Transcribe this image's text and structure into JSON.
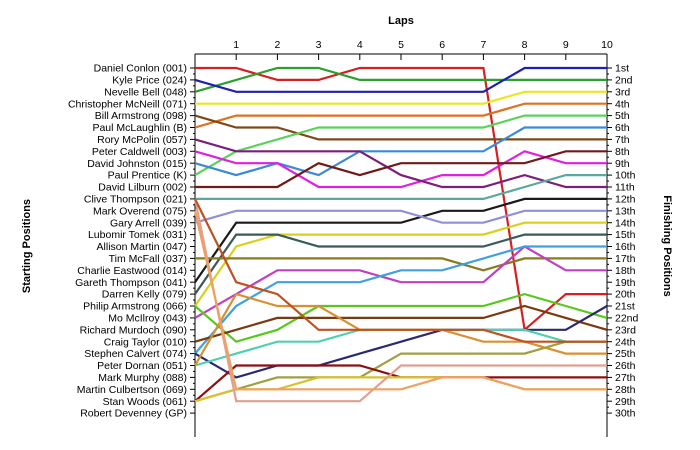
{
  "chart_data": {
    "type": "line",
    "title": "",
    "xlabel": "Laps",
    "ylabel_left": "Starting Positions",
    "ylabel_right": "Finishing Positions",
    "x": [
      0,
      1,
      2,
      3,
      4,
      5,
      6,
      7,
      8,
      9,
      10
    ],
    "x_tick_labels": [
      "1",
      "2",
      "3",
      "4",
      "5",
      "6",
      "7",
      "8",
      "9",
      "10"
    ],
    "xlim": [
      0,
      10
    ],
    "ylim": [
      1,
      30
    ],
    "y_inverted": true,
    "grid": false,
    "starting_labels": [
      "Daniel Conlon (001)",
      "Kyle Price (024)",
      "Nevelle Bell (048)",
      "Christopher McNeill (071)",
      "Bill Armstrong (098)",
      "Paul McLaughlin (B)",
      "Rory McPolin (057)",
      "Peter Caldwell (003)",
      "David Johnston (015)",
      "Paul Prentice (K)",
      "David Lilburn (002)",
      "Clive Thompson (021)",
      "Mark Overend (075)",
      "Gary Arrell (039)",
      "Lubomir Tomek (031)",
      "Allison Martin (047)",
      "Tim McFall (037)",
      "Charlie Eastwood (014)",
      "Gareth Thompson (041)",
      "Darren Kelly (079)",
      "Philip Armstrong (066)",
      "Mo McIlroy (043)",
      "Richard Murdoch (090)",
      "Craig Taylor (010)",
      "Stephen Calvert (074)",
      "Peter Dornan (051)",
      "Mark Murphy (088)",
      "Martin Culbertson (069)",
      "Stan Woods (061)",
      "Robert Devenney (GP)"
    ],
    "finishing_labels": [
      "1st",
      "2nd",
      "3rd",
      "4th",
      "5th",
      "6th",
      "7th",
      "8th",
      "9th",
      "10th",
      "11th",
      "12th",
      "13th",
      "14th",
      "15th",
      "16th",
      "17th",
      "18th",
      "19th",
      "20th",
      "21st",
      "22nd",
      "23rd",
      "24th",
      "25th",
      "26th",
      "27th",
      "28th",
      "29th",
      "30th"
    ],
    "series": [
      {
        "color": "#d42020",
        "positions": [
          1,
          1,
          2,
          2,
          1,
          1,
          1,
          1,
          23,
          20,
          20
        ]
      },
      {
        "color": "#2ca02c",
        "positions": [
          3,
          2,
          1,
          1,
          2,
          2,
          2,
          2,
          2,
          2,
          2
        ]
      },
      {
        "color": "#1f1fb4",
        "positions": [
          2,
          3,
          3,
          3,
          3,
          3,
          3,
          3,
          1,
          1,
          1
        ]
      },
      {
        "color": "#e8e820",
        "positions": [
          4,
          4,
          4,
          4,
          4,
          4,
          4,
          4,
          3,
          3,
          3
        ]
      },
      {
        "color": "#e07020",
        "positions": [
          6,
          5,
          5,
          5,
          5,
          5,
          5,
          5,
          4,
          4,
          4
        ]
      },
      {
        "color": "#7a4a1a",
        "positions": [
          5,
          6,
          6,
          7,
          7,
          7,
          7,
          7,
          7,
          7,
          7
        ]
      },
      {
        "color": "#5cd05c",
        "positions": [
          10,
          8,
          7,
          6,
          6,
          6,
          6,
          6,
          5,
          5,
          5
        ]
      },
      {
        "color": "#3a8ad8",
        "positions": [
          9,
          10,
          9,
          10,
          8,
          8,
          8,
          8,
          6,
          6,
          6
        ]
      },
      {
        "color": "#e020e0",
        "positions": [
          8,
          9,
          9,
          11,
          11,
          11,
          10,
          10,
          8,
          9,
          9
        ]
      },
      {
        "color": "#7b1f7b",
        "positions": [
          7,
          8,
          8,
          8,
          8,
          10,
          11,
          11,
          10,
          11,
          11
        ]
      },
      {
        "color": "#701a1a",
        "positions": [
          11,
          11,
          11,
          9,
          10,
          9,
          9,
          9,
          9,
          8,
          8
        ]
      },
      {
        "color": "#5aa8a0",
        "positions": [
          12,
          12,
          12,
          12,
          12,
          12,
          12,
          12,
          11,
          10,
          10
        ]
      },
      {
        "color": "#1a1a1a",
        "positions": [
          19,
          14,
          14,
          14,
          14,
          14,
          13,
          13,
          12,
          12,
          12
        ]
      },
      {
        "color": "#9090d8",
        "positions": [
          14,
          13,
          13,
          13,
          13,
          13,
          14,
          14,
          13,
          13,
          13
        ]
      },
      {
        "color": "#d8d020",
        "positions": [
          21,
          16,
          15,
          15,
          15,
          15,
          15,
          15,
          14,
          14,
          14
        ]
      },
      {
        "color": "#3a5a5a",
        "positions": [
          20,
          15,
          15,
          16,
          16,
          16,
          16,
          16,
          15,
          15,
          15
        ]
      },
      {
        "color": "#8a7a20",
        "positions": [
          17,
          17,
          17,
          17,
          17,
          17,
          17,
          18,
          17,
          17,
          17
        ]
      },
      {
        "color": "#c040c0",
        "positions": [
          22,
          20,
          18,
          18,
          18,
          19,
          19,
          19,
          16,
          18,
          18
        ]
      },
      {
        "color": "#40a0e0",
        "positions": [
          25,
          21,
          19,
          19,
          19,
          18,
          18,
          17,
          16,
          16,
          16
        ]
      },
      {
        "color": "#58c820",
        "positions": [
          21,
          24,
          23,
          21,
          21,
          21,
          21,
          21,
          20,
          21,
          22
        ]
      },
      {
        "color": "#7a3a10",
        "positions": [
          24,
          23,
          22,
          22,
          22,
          22,
          22,
          22,
          21,
          22,
          23
        ]
      },
      {
        "color": "#2a2a70",
        "positions": [
          25,
          27,
          26,
          26,
          25,
          24,
          23,
          23,
          23,
          23,
          21
        ]
      },
      {
        "color": "#50d0b0",
        "positions": [
          26,
          25,
          24,
          24,
          23,
          23,
          23,
          23,
          23,
          24,
          24
        ]
      },
      {
        "color": "#d89030",
        "positions": [
          26,
          20,
          21,
          21,
          23,
          23,
          23,
          24,
          24,
          25,
          25
        ]
      },
      {
        "color": "#a0a040",
        "positions": [
          29,
          28,
          27,
          27,
          27,
          25,
          25,
          25,
          25,
          24,
          24
        ]
      },
      {
        "color": "#8b1010",
        "positions": [
          29,
          26,
          26,
          26,
          26,
          27,
          27,
          27,
          27,
          27,
          27
        ]
      },
      {
        "color": "#d8c030",
        "positions": [
          29,
          28,
          28,
          27,
          27,
          27,
          27,
          27,
          28,
          28,
          28
        ]
      },
      {
        "color": "#e0a090",
        "positions": [
          12,
          29,
          29,
          29,
          29,
          26,
          26,
          26,
          26,
          26,
          26
        ]
      },
      {
        "color": "#f0a060",
        "positions": [
          13,
          28,
          28,
          28,
          28,
          28,
          27,
          27,
          28,
          28,
          28
        ]
      },
      {
        "color": "#c05020",
        "positions": [
          12,
          19,
          20,
          23,
          23,
          23,
          23,
          23,
          24,
          24,
          24
        ]
      }
    ]
  }
}
